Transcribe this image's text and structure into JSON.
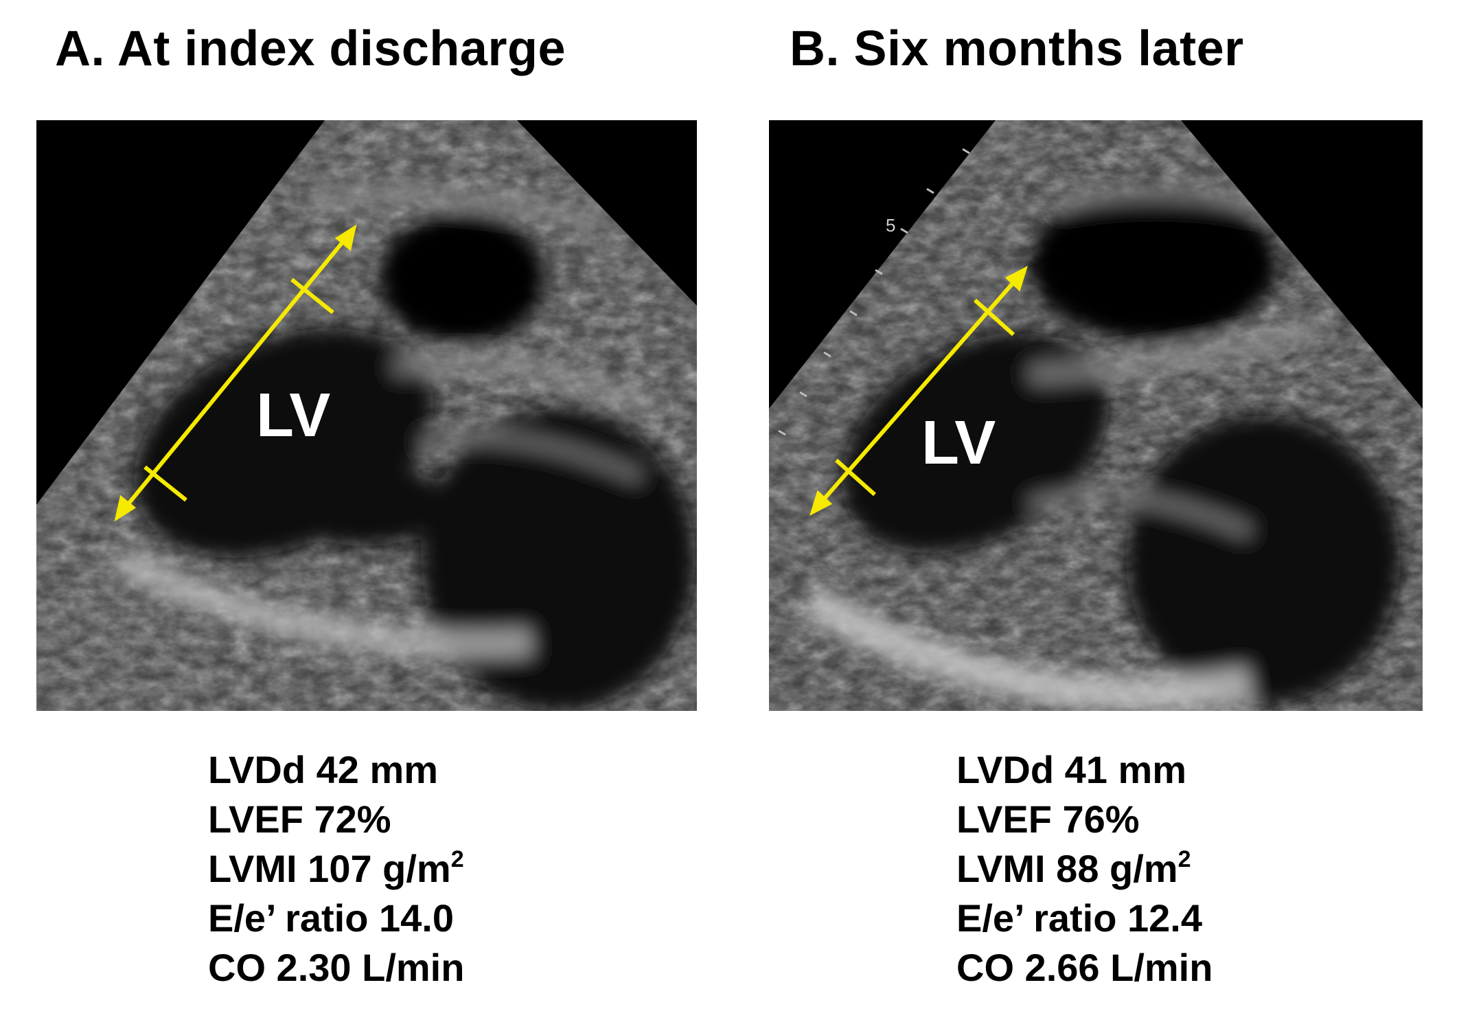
{
  "panel_a": {
    "title": "A. At index discharge",
    "lv_label": "LV",
    "measurements": [
      {
        "text": "LVDd 42 mm"
      },
      {
        "text": "LVEF 72%"
      },
      {
        "text": "LVMI 107 g/m",
        "sup": "2"
      },
      {
        "text": "E/e’ ratio 14.0"
      },
      {
        "text": "CO 2.30 L/min"
      }
    ]
  },
  "panel_b": {
    "title": "B. Six months later",
    "lv_label": "LV",
    "scale_mark": "5",
    "measurements": [
      {
        "text": "LVDd 41 mm"
      },
      {
        "text": "LVEF 76%"
      },
      {
        "text": "LVMI 88 g/m",
        "sup": "2"
      },
      {
        "text": "E/e’ ratio 12.4"
      },
      {
        "text": "CO 2.66 L/min"
      }
    ]
  },
  "colors": {
    "caliper": "#f5ea00",
    "background": "#000000",
    "text": "#000000"
  }
}
